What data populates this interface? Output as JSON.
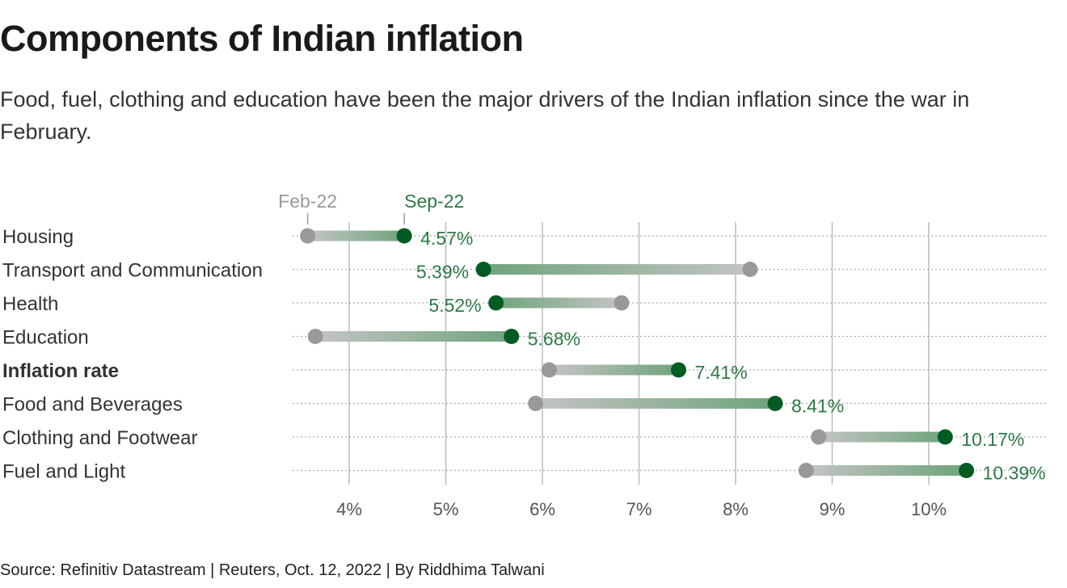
{
  "title": "Components of Indian inflation",
  "subtitle": "Food, fuel, clothing and education have been the major drivers of the Indian inflation since the war in February.",
  "source": "Source: Refinitiv Datastream | Reuters, Oct. 12, 2022 | By Riddhima Talwani",
  "colors": {
    "feb": "#999999",
    "sep": "#005c23",
    "grid": "#bbbbbb"
  },
  "chart_data": {
    "type": "dumbbell",
    "xlim": [
      3.4,
      10.6
    ],
    "xticks": [
      4,
      5,
      6,
      7,
      8,
      9,
      10
    ],
    "xtick_labels": [
      "4%",
      "5%",
      "6%",
      "7%",
      "8%",
      "9%",
      "10%"
    ],
    "legend": {
      "start": "Feb-22",
      "end": "Sep-22"
    },
    "categories": [
      "Housing",
      "Transport and Communication",
      "Health",
      "Education",
      "Inflation rate",
      "Food and Beverages",
      "Clothing and Footwear",
      "Fuel and Light"
    ],
    "bold_category": "Inflation rate",
    "feb": [
      3.57,
      8.15,
      6.82,
      3.65,
      6.07,
      5.93,
      8.86,
      8.73
    ],
    "sep": [
      4.57,
      5.39,
      5.52,
      5.68,
      7.41,
      8.41,
      10.17,
      10.39
    ],
    "sep_labels": [
      "4.57%",
      "5.39%",
      "5.52%",
      "5.68%",
      "7.41%",
      "8.41%",
      "10.17%",
      "10.39%"
    ]
  }
}
